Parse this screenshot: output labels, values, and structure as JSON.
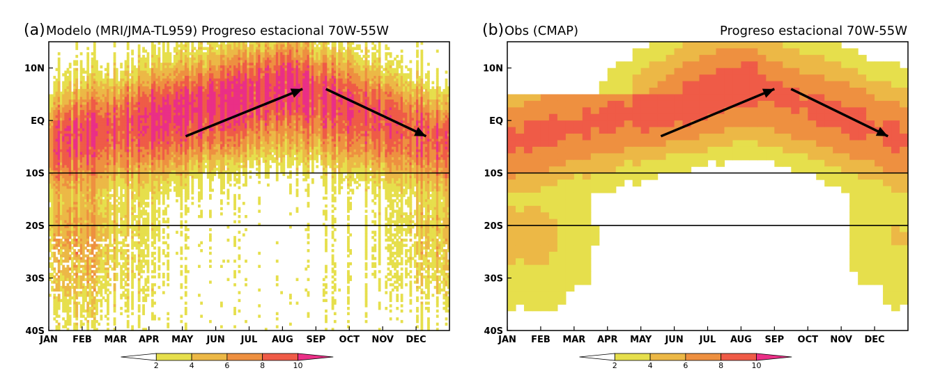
{
  "palette": {
    "white": "#ffffff",
    "c2_4": "#e6df4c",
    "c4_6": "#ecb846",
    "c6_8": "#ee9040",
    "c8_10": "#ef5b47",
    "c10p": "#ea2f86"
  },
  "chart_data": [
    {
      "type": "heatmap",
      "panel_letter": "(a)",
      "title": "Modelo (MRI/JMA-TL959) Progreso estacional 70W-55W",
      "title_right": "",
      "months": [
        "JAN",
        "FEB",
        "MAR",
        "APR",
        "MAY",
        "JUN",
        "JUL",
        "AUG",
        "SEP",
        "OCT",
        "NOV",
        "DEC"
      ],
      "lat_ticks": [
        "10N",
        "EQ",
        "10S",
        "20S",
        "30S",
        "40S"
      ],
      "ylim": [
        -40,
        15
      ],
      "reference_lines_lat": [
        -10,
        -20
      ],
      "colorbar_levels": [
        "2",
        "4",
        "6",
        "8",
        "10"
      ],
      "style": "noisy",
      "arrows": [
        {
          "from": {
            "month": 4.1,
            "lat": -3
          },
          "to": {
            "month": 7.6,
            "lat": 6
          }
        },
        {
          "from": {
            "month": 8.3,
            "lat": 6
          },
          "to": {
            "month": 11.3,
            "lat": -3
          }
        }
      ]
    },
    {
      "type": "heatmap",
      "panel_letter": "(b)",
      "title": "Obs (CMAP)",
      "title_right": "Progreso estacional 70W-55W",
      "months": [
        "JAN",
        "FEB",
        "MAR",
        "APR",
        "MAY",
        "JUN",
        "JUL",
        "AUG",
        "SEP",
        "OCT",
        "NOV",
        "DEC"
      ],
      "lat_ticks": [
        "10N",
        "EQ",
        "10S",
        "20S",
        "30S",
        "40S"
      ],
      "ylim": [
        -40,
        15
      ],
      "reference_lines_lat": [
        -10,
        -20
      ],
      "colorbar_levels": [
        "2",
        "4",
        "6",
        "8",
        "10"
      ],
      "style": "smooth",
      "arrows": [
        {
          "from": {
            "month": 4.6,
            "lat": -3
          },
          "to": {
            "month": 8.0,
            "lat": 6
          }
        },
        {
          "from": {
            "month": 8.5,
            "lat": 6
          },
          "to": {
            "month": 11.4,
            "lat": -3
          }
        }
      ]
    }
  ]
}
